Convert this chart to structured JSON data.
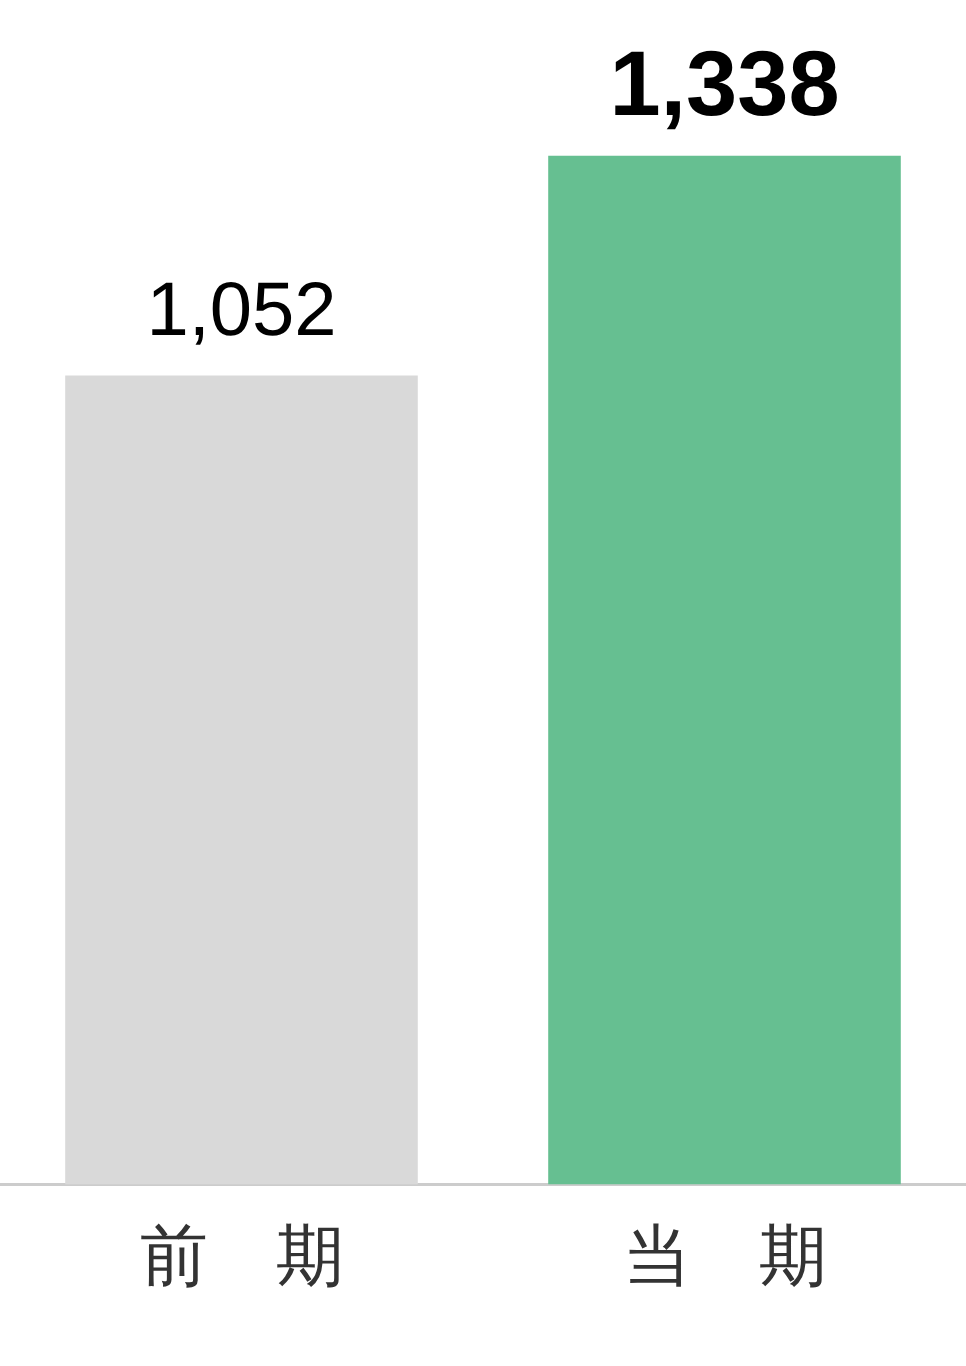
{
  "chart_data": {
    "type": "bar",
    "categories": [
      "前　期",
      "当　期"
    ],
    "values": [
      1052,
      1338
    ],
    "colors": [
      "#d9d9d9",
      "#66bf91"
    ],
    "value_labels": [
      "1,052",
      "1,338"
    ],
    "grid": false,
    "legend": false
  }
}
